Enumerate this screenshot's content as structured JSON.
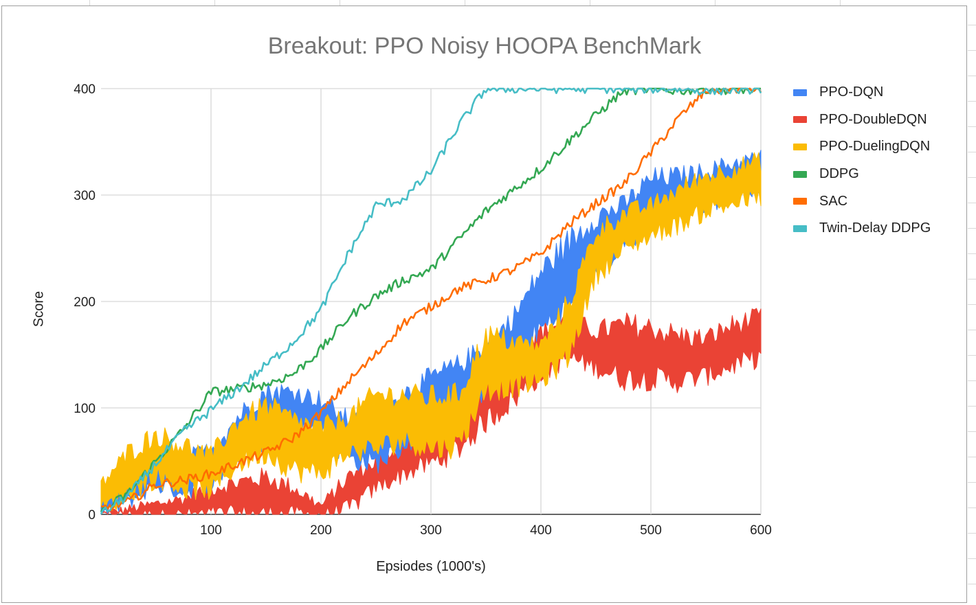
{
  "chart_data": {
    "type": "line",
    "title": "Breakout: PPO Noisy HOOPA BenchMark",
    "xlabel": "Epsiodes (1000's)",
    "ylabel": "Score",
    "xlim": [
      0,
      600
    ],
    "ylim": [
      0,
      400
    ],
    "x_ticks": [
      "100",
      "200",
      "300",
      "400",
      "500",
      "600"
    ],
    "y_ticks": [
      "0",
      "100",
      "200",
      "300",
      "400"
    ],
    "grid": true,
    "legend_position": "right",
    "series": [
      {
        "name": "PPO-DQN",
        "color": "#4285f4",
        "style": "band",
        "x": [
          0,
          25,
          50,
          75,
          100,
          125,
          150,
          175,
          200,
          225,
          250,
          275,
          300,
          325,
          350,
          375,
          400,
          425,
          450,
          475,
          500,
          525,
          550,
          575,
          600
        ],
        "lower": [
          0,
          12,
          28,
          22,
          30,
          52,
          72,
          85,
          78,
          52,
          48,
          65,
          85,
          100,
          118,
          145,
          175,
          192,
          232,
          252,
          272,
          285,
          292,
          300,
          310
        ],
        "upper": [
          15,
          32,
          58,
          52,
          60,
          92,
          115,
          115,
          108,
          88,
          88,
          112,
          128,
          140,
          158,
          185,
          228,
          255,
          280,
          290,
          315,
          318,
          322,
          330,
          335
        ]
      },
      {
        "name": "PPO-DoubleDQN",
        "color": "#ea4335",
        "style": "band",
        "x": [
          0,
          25,
          50,
          75,
          100,
          125,
          150,
          175,
          200,
          225,
          250,
          275,
          300,
          325,
          350,
          375,
          400,
          425,
          450,
          475,
          500,
          525,
          550,
          575,
          600
        ],
        "lower": [
          0,
          0,
          0,
          0,
          0,
          0,
          0,
          0,
          0,
          5,
          25,
          38,
          48,
          62,
          88,
          108,
          132,
          148,
          138,
          128,
          128,
          125,
          130,
          140,
          148
        ],
        "upper": [
          0,
          5,
          10,
          15,
          25,
          30,
          35,
          25,
          8,
          35,
          50,
          68,
          85,
          115,
          138,
          158,
          172,
          182,
          172,
          178,
          175,
          168,
          165,
          178,
          185
        ]
      },
      {
        "name": "PPO-DuelingDQN",
        "color": "#fbbc04",
        "style": "band",
        "x": [
          0,
          25,
          50,
          75,
          100,
          125,
          150,
          175,
          200,
          225,
          250,
          275,
          300,
          325,
          350,
          375,
          400,
          425,
          450,
          475,
          500,
          525,
          550,
          575,
          600
        ],
        "lower": [
          5,
          20,
          35,
          25,
          22,
          48,
          58,
          42,
          38,
          58,
          62,
          70,
          62,
          65,
          118,
          120,
          125,
          148,
          225,
          248,
          262,
          272,
          285,
          292,
          298
        ],
        "upper": [
          28,
          58,
          75,
          65,
          55,
          88,
          102,
          88,
          80,
          92,
          112,
          112,
          110,
          112,
          168,
          162,
          158,
          198,
          265,
          282,
          290,
          305,
          318,
          325,
          332
        ]
      },
      {
        "name": "DDPG",
        "color": "#34a853",
        "style": "line",
        "x": [
          0,
          25,
          50,
          75,
          100,
          125,
          150,
          175,
          200,
          225,
          250,
          275,
          300,
          325,
          350,
          375,
          400,
          425,
          450,
          475,
          500,
          525,
          550,
          575,
          600
        ],
        "y": [
          2,
          20,
          50,
          80,
          115,
          118,
          122,
          132,
          155,
          185,
          205,
          220,
          230,
          258,
          285,
          305,
          325,
          350,
          375,
          398,
          400,
          398,
          400,
          399,
          400
        ]
      },
      {
        "name": "SAC",
        "color": "#ff6d01",
        "style": "line",
        "x": [
          0,
          25,
          50,
          75,
          100,
          125,
          150,
          175,
          200,
          225,
          250,
          275,
          300,
          325,
          350,
          375,
          400,
          425,
          450,
          475,
          500,
          525,
          550,
          575,
          600
        ],
        "y": [
          5,
          12,
          28,
          32,
          38,
          48,
          58,
          72,
          95,
          125,
          150,
          180,
          195,
          212,
          220,
          230,
          245,
          272,
          292,
          310,
          340,
          372,
          398,
          400,
          400
        ]
      },
      {
        "name": "Twin-Delay DDPG",
        "color": "#46bdc6",
        "style": "line",
        "x": [
          0,
          25,
          50,
          75,
          100,
          125,
          150,
          175,
          200,
          225,
          250,
          275,
          300,
          325,
          350,
          375,
          400,
          425,
          450,
          475,
          500,
          525,
          550,
          575,
          600
        ],
        "y": [
          0,
          18,
          48,
          78,
          98,
          118,
          140,
          162,
          192,
          245,
          290,
          296,
          322,
          365,
          400,
          400,
          400,
          400,
          400,
          400,
          400,
          400,
          398,
          399,
          400
        ]
      }
    ]
  }
}
